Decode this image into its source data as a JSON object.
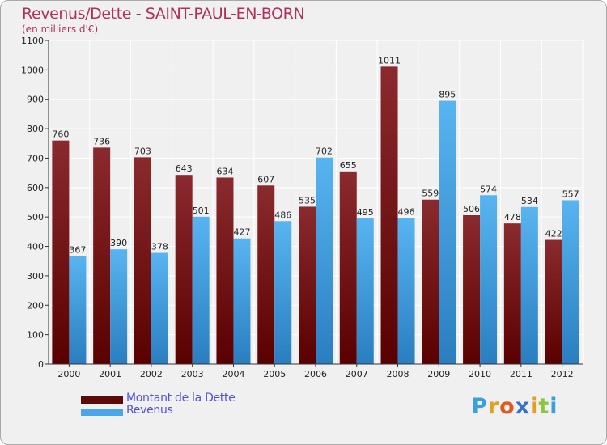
{
  "title": "Revenus/Dette - SAINT-PAUL-EN-BORN",
  "subtitle": "(en milliers d'€)",
  "colors": {
    "series_dette": "#6b0a0a",
    "series_revenus": "#4aa6e8",
    "title": "#b0305c",
    "legend_text": "#5050e0"
  },
  "chart_data": {
    "type": "bar",
    "title": "Revenus/Dette - SAINT-PAUL-EN-BORN",
    "ylabel": "(en milliers d'€)",
    "xlabel": "",
    "ylim": [
      0,
      1100
    ],
    "yticks": [
      0,
      100,
      200,
      300,
      400,
      500,
      600,
      700,
      800,
      900,
      1000,
      1100
    ],
    "grid": true,
    "categories": [
      "2000",
      "2001",
      "2002",
      "2003",
      "2004",
      "2005",
      "2006",
      "2007",
      "2008",
      "2009",
      "2010",
      "2011",
      "2012"
    ],
    "series": [
      {
        "name": "Montant de la Dette",
        "color": "#7a1a1e",
        "values": [
          760,
          736,
          703,
          643,
          634,
          607,
          535,
          655,
          1011,
          559,
          506,
          478,
          422
        ]
      },
      {
        "name": "Revenus",
        "color": "#4aa6e8",
        "values": [
          367,
          390,
          378,
          501,
          427,
          486,
          702,
          495,
          496,
          895,
          574,
          534,
          557
        ]
      }
    ]
  },
  "legend": {
    "items": [
      {
        "label": "Montant de la Dette"
      },
      {
        "label": "Revenus"
      }
    ]
  },
  "logo": {
    "letters": [
      "P",
      "r",
      "o",
      "x",
      "i",
      "t",
      "i"
    ],
    "colors": [
      "#3aa0d8",
      "#e0a020",
      "#e05a20",
      "#3a70c8",
      "#e0a020",
      "#8cc63f",
      "#3aa0d8"
    ]
  }
}
